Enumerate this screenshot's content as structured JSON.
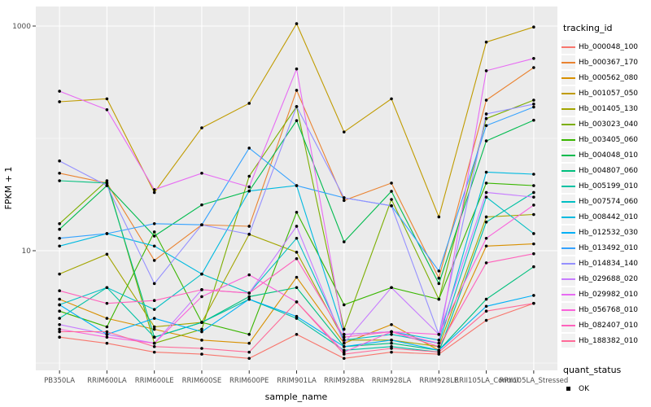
{
  "figure": {
    "background": "#ffffff",
    "panel_background": "#ebebeb",
    "grid_color": "#ffffff",
    "point_color": "#000000",
    "tick_text_color": "#4d4d4d",
    "axis_title_color": "#000000"
  },
  "chart_data": {
    "type": "line",
    "title": "",
    "xlabel": "sample_name",
    "ylabel": "FPKM + 1",
    "y_scale": "log10",
    "ylim": [
      0.86,
      1500
    ],
    "grid": "on",
    "legend_position": "right",
    "y_ticks": [
      {
        "label": "10",
        "value": 10
      },
      {
        "label": "1000",
        "value": 1000
      }
    ],
    "y_minor_breaks": [
      1,
      100
    ],
    "categories": [
      "PB350LA",
      "RRIM600LA",
      "RRIM600LE",
      "RRIM600SE",
      "RRIM600PE",
      "RRIM901LA",
      "RRIM928BA",
      "RRIM928LA",
      "RRIM928LE",
      "RRII105LA_Control",
      "RRII105LA_Stressed"
    ],
    "series": [
      {
        "name": "Hb_000048_100",
        "color": "#F8766D",
        "values": [
          1.7,
          1.5,
          1.25,
          1.2,
          1.1,
          1.8,
          1.1,
          1.25,
          1.2,
          2.4,
          3.4
        ]
      },
      {
        "name": "Hb_000367_170",
        "color": "#EA8331",
        "values": [
          49,
          40,
          8.2,
          17,
          16.5,
          268,
          28,
          40,
          5.7,
          219,
          427
        ]
      },
      {
        "name": "Hb_000562_080",
        "color": "#D89000",
        "values": [
          3.7,
          2.5,
          2.0,
          1.6,
          1.5,
          5.8,
          1.5,
          2.2,
          1.3,
          11,
          11.5
        ]
      },
      {
        "name": "Hb_001057_050",
        "color": "#C09B00",
        "values": [
          212,
          225,
          33,
          124,
          205,
          1050,
          114,
          225,
          20,
          720,
          980
        ]
      },
      {
        "name": "Hb_001405_130",
        "color": "#A3A500",
        "values": [
          6.2,
          9.3,
          2.1,
          2.3,
          14,
          9.7,
          1.6,
          1.6,
          1.4,
          20,
          21
        ]
      },
      {
        "name": "Hb_003023_040",
        "color": "#7CAE00",
        "values": [
          17.4,
          42,
          1.5,
          2.0,
          46,
          192,
          2.0,
          28.6,
          3.7,
          150,
          219
        ]
      },
      {
        "name": "Hb_003405_060",
        "color": "#39B600",
        "values": [
          2.9,
          2.1,
          14.7,
          2.3,
          1.8,
          22,
          3.3,
          4.7,
          3.7,
          40,
          38
        ]
      },
      {
        "name": "Hb_004048_010",
        "color": "#00BB4E",
        "values": [
          15.5,
          38,
          13.5,
          25.6,
          34,
          144,
          12,
          33.8,
          5.1,
          95,
          145
        ]
      },
      {
        "name": "Hb_004807_060",
        "color": "#00BF7D",
        "values": [
          42,
          40,
          1.7,
          2.3,
          3.9,
          4.7,
          1.4,
          1.5,
          1.3,
          3.7,
          7.2
        ]
      },
      {
        "name": "Hb_005199_010",
        "color": "#00C1A3",
        "values": [
          2.5,
          4.7,
          1.7,
          2.3,
          3.7,
          2.5,
          1.3,
          1.4,
          1.25,
          18,
          33
        ]
      },
      {
        "name": "Hb_007574_060",
        "color": "#00BFC4",
        "values": [
          3.3,
          4.7,
          3.0,
          6.2,
          4.2,
          12.9,
          1.6,
          1.8,
          1.5,
          30,
          14.2
        ]
      },
      {
        "name": "Hb_008442_010",
        "color": "#00BAE0",
        "values": [
          11,
          14.2,
          11,
          6.2,
          34,
          38,
          1.8,
          1.9,
          1.6,
          50,
          48
        ]
      },
      {
        "name": "Hb_012532_030",
        "color": "#00B0F6",
        "values": [
          3.3,
          1.8,
          2.5,
          1.9,
          3.7,
          2.6,
          1.4,
          1.6,
          1.3,
          3.2,
          4.0
        ]
      },
      {
        "name": "Hb_013492_010",
        "color": "#35A2FF",
        "values": [
          12.9,
          14.2,
          17.4,
          17,
          82,
          38,
          29.6,
          25.1,
          6.6,
          130,
          190
        ]
      },
      {
        "name": "Hb_014834_140",
        "color": "#9590FF",
        "values": [
          63,
          38,
          5.1,
          17,
          14,
          192,
          29.6,
          25.1,
          1.8,
          165,
          202
        ]
      },
      {
        "name": "Hb_029688_020",
        "color": "#C77CFF",
        "values": [
          2.2,
          1.8,
          1.5,
          4.5,
          4.2,
          16.5,
          1.5,
          4.7,
          1.8,
          33,
          30
        ]
      },
      {
        "name": "Hb_029982_010",
        "color": "#E76BF3",
        "values": [
          263,
          180,
          35,
          49,
          37,
          415,
          1.8,
          1.9,
          1.5,
          400,
          515
        ]
      },
      {
        "name": "Hb_056768_010",
        "color": "#FA62DB",
        "values": [
          2.0,
          1.7,
          1.5,
          3.9,
          6.1,
          3.5,
          1.25,
          1.9,
          1.8,
          12.9,
          25.5
        ]
      },
      {
        "name": "Hb_082407_010",
        "color": "#FF62BC",
        "values": [
          4.4,
          3.4,
          3.6,
          4.5,
          4.2,
          8.5,
          1.7,
          1.9,
          1.4,
          7.8,
          9.4
        ]
      },
      {
        "name": "Hb_188382_010",
        "color": "#FF6A98",
        "values": [
          1.9,
          1.9,
          1.4,
          1.35,
          1.25,
          3.5,
          1.2,
          1.35,
          1.25,
          2.9,
          3.4
        ]
      }
    ],
    "legend": {
      "color_title": "tracking_id",
      "shape_title": "quant_status",
      "shape_entries": [
        {
          "label": "OK"
        }
      ]
    }
  }
}
